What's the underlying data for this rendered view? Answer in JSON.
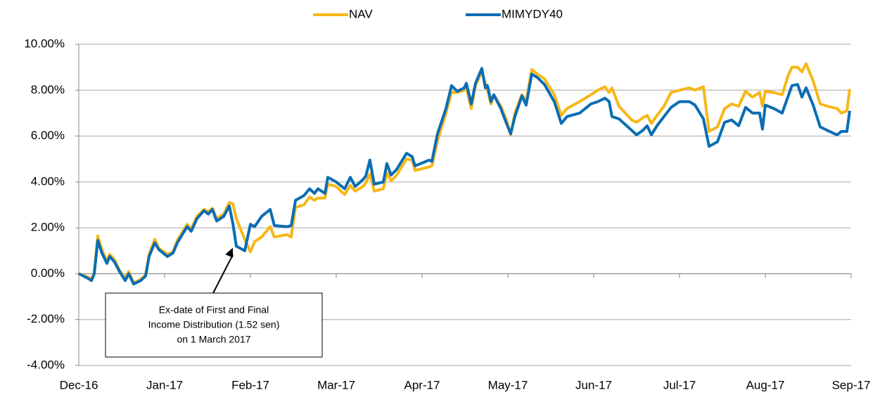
{
  "chart_data": {
    "type": "line",
    "legend": "top",
    "xlim": [
      0,
      9
    ],
    "ylim": [
      -4,
      10
    ],
    "xticks": [
      {
        "value": 0,
        "label": "Dec-16"
      },
      {
        "value": 1,
        "label": "Jan-17"
      },
      {
        "value": 2,
        "label": "Feb-17"
      },
      {
        "value": 3,
        "label": "Mar-17"
      },
      {
        "value": 4,
        "label": "Apr-17"
      },
      {
        "value": 5,
        "label": "May-17"
      },
      {
        "value": 6,
        "label": "Jun-17"
      },
      {
        "value": 7,
        "label": "Jul-17"
      },
      {
        "value": 8,
        "label": "Aug-17"
      },
      {
        "value": 9,
        "label": "Sep-17"
      }
    ],
    "yticks": [
      {
        "value": -4,
        "label": "-4.00%"
      },
      {
        "value": -2,
        "label": "-2.00%"
      },
      {
        "value": 0,
        "label": "0.00%"
      },
      {
        "value": 2,
        "label": "2.00%"
      },
      {
        "value": 4,
        "label": "4.00%"
      },
      {
        "value": 6,
        "label": "6.00%"
      },
      {
        "value": 8,
        "label": "8.00%"
      },
      {
        "value": 10,
        "label": "10.00%"
      }
    ],
    "grid": true,
    "annotation": {
      "lines": [
        "Ex-date of First and Final",
        "Income Distribution (1.52 sen)",
        "on 1 March 2017"
      ],
      "x": 1.795,
      "y": 1.5
    },
    "x": [
      0,
      0.107,
      0.148,
      0.18,
      0.221,
      0.27,
      0.328,
      0.361,
      0.418,
      0.475,
      0.541,
      0.582,
      0.639,
      0.721,
      0.779,
      0.82,
      0.885,
      0.934,
      1.033,
      1.098,
      1.148,
      1.262,
      1.311,
      1.377,
      1.459,
      1.508,
      1.557,
      1.607,
      1.689,
      1.754,
      1.795,
      1.836,
      1.934,
      2.0,
      2.049,
      2.131,
      2.23,
      2.279,
      2.426,
      2.475,
      2.525,
      2.623,
      2.689,
      2.746,
      2.787,
      2.869,
      2.902,
      3.0,
      3.098,
      3.164,
      3.221,
      3.311,
      3.344,
      3.393,
      3.443,
      3.549,
      3.59,
      3.639,
      3.705,
      3.82,
      3.885,
      3.918,
      4.082,
      4.115,
      4.18,
      4.279,
      4.344,
      4.41,
      4.492,
      4.516,
      4.574,
      4.623,
      4.697,
      4.738,
      4.762,
      4.803,
      4.836,
      4.918,
      4.984,
      5.033,
      5.082,
      5.164,
      5.213,
      5.279,
      5.344,
      5.426,
      5.541,
      5.623,
      5.689,
      5.836,
      5.967,
      6.049,
      6.131,
      6.18,
      6.213,
      6.295,
      6.443,
      6.5,
      6.574,
      6.623,
      6.672,
      6.738,
      6.82,
      6.902,
      7.0,
      7.115,
      7.18,
      7.279,
      7.344,
      7.443,
      7.525,
      7.607,
      7.689,
      7.77,
      7.852,
      7.934,
      7.967,
      8.0,
      8.098,
      8.197,
      8.262,
      8.311,
      8.377,
      8.426,
      8.475,
      8.557,
      8.639,
      8.721,
      8.836,
      8.885,
      8.951,
      8.984
    ],
    "series": [
      {
        "name": "NAV",
        "color": "#f7b718",
        "values": [
          0,
          -0.15,
          -0.25,
          0.05,
          1.65,
          1.05,
          0.55,
          0.85,
          0.6,
          0.15,
          -0.2,
          0.1,
          -0.4,
          -0.25,
          -0.05,
          0.85,
          1.5,
          1.1,
          0.85,
          0.95,
          1.45,
          2.15,
          1.95,
          2.5,
          2.8,
          2.7,
          2.85,
          2.4,
          2.6,
          3.1,
          3.05,
          2.4,
          1.5,
          0.95,
          1.4,
          1.6,
          2.05,
          1.6,
          1.7,
          1.6,
          2.9,
          3.0,
          3.35,
          3.2,
          3.3,
          3.3,
          3.9,
          3.8,
          3.45,
          3.85,
          3.6,
          3.8,
          3.95,
          4.35,
          3.6,
          3.7,
          4.4,
          4.05,
          4.3,
          5.0,
          4.95,
          4.5,
          4.65,
          4.7,
          5.8,
          7.0,
          7.9,
          7.9,
          8.0,
          8.1,
          7.2,
          8.2,
          8.8,
          8.3,
          8.0,
          7.4,
          7.8,
          7.3,
          6.7,
          6.05,
          7.0,
          7.8,
          7.5,
          8.9,
          8.7,
          8.5,
          7.8,
          6.9,
          7.2,
          7.5,
          7.8,
          8.0,
          8.15,
          7.9,
          8.1,
          7.3,
          6.7,
          6.6,
          6.8,
          6.9,
          6.55,
          6.9,
          7.3,
          7.9,
          8.0,
          8.1,
          8.0,
          8.15,
          6.2,
          6.4,
          7.2,
          7.4,
          7.3,
          7.95,
          7.7,
          7.9,
          7.3,
          7.95,
          7.9,
          7.8,
          8.6,
          9.0,
          9.0,
          8.8,
          9.15,
          8.4,
          7.4,
          7.3,
          7.2,
          7.0,
          7.1,
          8.05
        ]
      },
      {
        "name": "MIMYDY40",
        "color": "#0b6db3",
        "values": [
          0,
          -0.2,
          -0.3,
          0,
          1.45,
          0.9,
          0.45,
          0.75,
          0.5,
          0.1,
          -0.3,
          0,
          -0.45,
          -0.3,
          -0.1,
          0.75,
          1.35,
          1.05,
          0.75,
          0.9,
          1.35,
          2.05,
          1.85,
          2.4,
          2.75,
          2.6,
          2.8,
          2.3,
          2.5,
          2.95,
          2.2,
          1.2,
          1.0,
          2.15,
          2.05,
          2.5,
          2.8,
          2.1,
          2.05,
          2.1,
          3.2,
          3.4,
          3.7,
          3.5,
          3.7,
          3.5,
          4.2,
          4.0,
          3.7,
          4.2,
          3.8,
          4.1,
          4.25,
          4.95,
          3.9,
          4.0,
          4.8,
          4.3,
          4.55,
          5.25,
          5.1,
          4.7,
          4.95,
          4.9,
          6.1,
          7.2,
          8.2,
          7.95,
          8.1,
          8.3,
          7.4,
          8.3,
          8.95,
          8.1,
          8.2,
          7.5,
          7.8,
          7.2,
          6.55,
          6.1,
          6.85,
          7.75,
          7.35,
          8.7,
          8.55,
          8.25,
          7.5,
          6.55,
          6.85,
          7.0,
          7.4,
          7.5,
          7.65,
          7.5,
          6.85,
          6.75,
          6.25,
          6.05,
          6.25,
          6.45,
          6.05,
          6.45,
          6.85,
          7.25,
          7.5,
          7.5,
          7.35,
          6.75,
          5.55,
          5.75,
          6.6,
          6.7,
          6.45,
          7.25,
          7.0,
          7.0,
          6.3,
          7.35,
          7.2,
          7.0,
          7.7,
          8.2,
          8.25,
          7.7,
          8.1,
          7.35,
          6.4,
          6.25,
          6.05,
          6.2,
          6.2,
          7.1
        ]
      }
    ]
  }
}
